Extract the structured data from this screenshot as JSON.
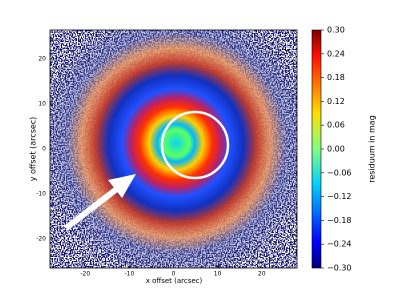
{
  "chart_data": {
    "type": "image",
    "x_label": "x offset (arcsec)",
    "y_label": "y offset (arcsec)",
    "xlim": [
      -28,
      28
    ],
    "ylim": [
      -26.5,
      26.5
    ],
    "xticks": [
      -20,
      -10,
      0,
      10,
      20
    ],
    "yticks": [
      20,
      10,
      0,
      -10,
      -20
    ],
    "colorbar": {
      "label": "residuum in mag",
      "colormap": "jet",
      "clim": [
        -0.3,
        0.3
      ],
      "ticks": [
        {
          "value": 0.3,
          "label": "0.30"
        },
        {
          "value": 0.24,
          "label": "0.24"
        },
        {
          "value": 0.18,
          "label": "0.18"
        },
        {
          "value": 0.12,
          "label": "0.12"
        },
        {
          "value": 0.06,
          "label": "0.06"
        },
        {
          "value": 0,
          "label": "0.00"
        },
        {
          "value": -0.06,
          "label": "−0.06"
        },
        {
          "value": -0.12,
          "label": "−0.12"
        },
        {
          "value": -0.18,
          "label": "−0.18"
        },
        {
          "value": -0.24,
          "label": "−0.24"
        },
        {
          "value": -0.3,
          "label": "−0.30"
        }
      ]
    }
  }
}
